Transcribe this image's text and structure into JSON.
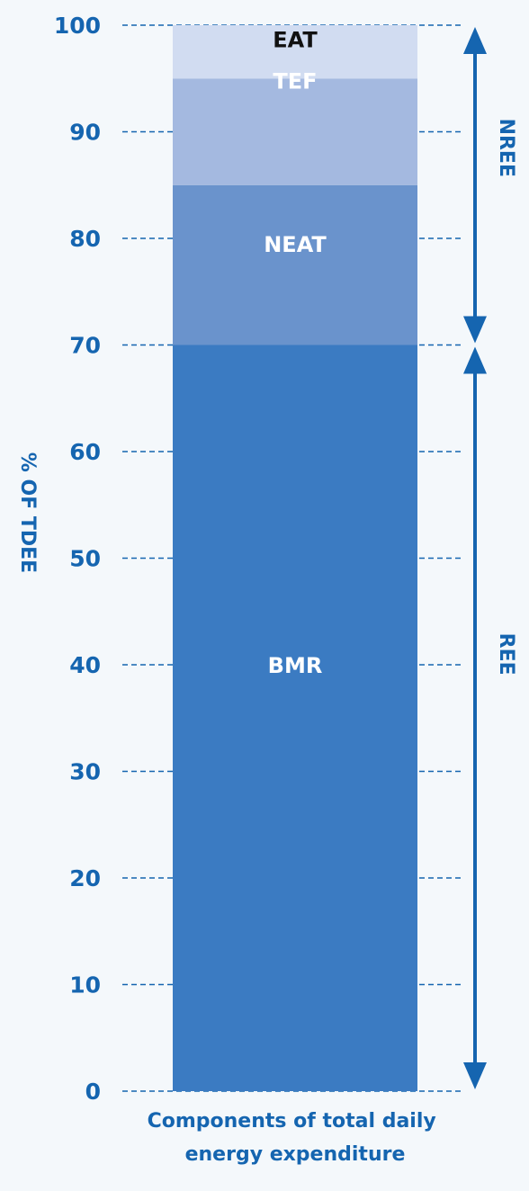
{
  "chart_data": {
    "type": "bar",
    "stacked": true,
    "categories": [
      "Components of total daily energy expenditure"
    ],
    "xlabel_lines": [
      "Components of total daily",
      "energy expenditure"
    ],
    "ylabel": "% OF TDEE",
    "ylim": [
      0,
      100
    ],
    "yticks": [
      0,
      10,
      20,
      30,
      40,
      50,
      60,
      70,
      80,
      90,
      100
    ],
    "grid": true,
    "series": [
      {
        "name": "BMR",
        "values": [
          70
        ],
        "color": "#3b7bc2",
        "label_color": "#ffffff"
      },
      {
        "name": "NEAT",
        "values": [
          15
        ],
        "color": "#6a93cc",
        "label_color": "#ffffff"
      },
      {
        "name": "TEF",
        "values": [
          10
        ],
        "color": "#a4b9e0",
        "label_color": "#ffffff"
      },
      {
        "name": "EAT",
        "values": [
          5
        ],
        "color": "#d1dcf1",
        "label_color": "#111111"
      }
    ],
    "brackets": [
      {
        "label": "NREE",
        "from": 70,
        "to": 100
      },
      {
        "label": "REE",
        "from": 0,
        "to": 70
      }
    ],
    "colors": {
      "text": "#1565b0",
      "grid": "#1565b0",
      "arrow": "#1565b0",
      "background": "#f4f8fb"
    }
  }
}
